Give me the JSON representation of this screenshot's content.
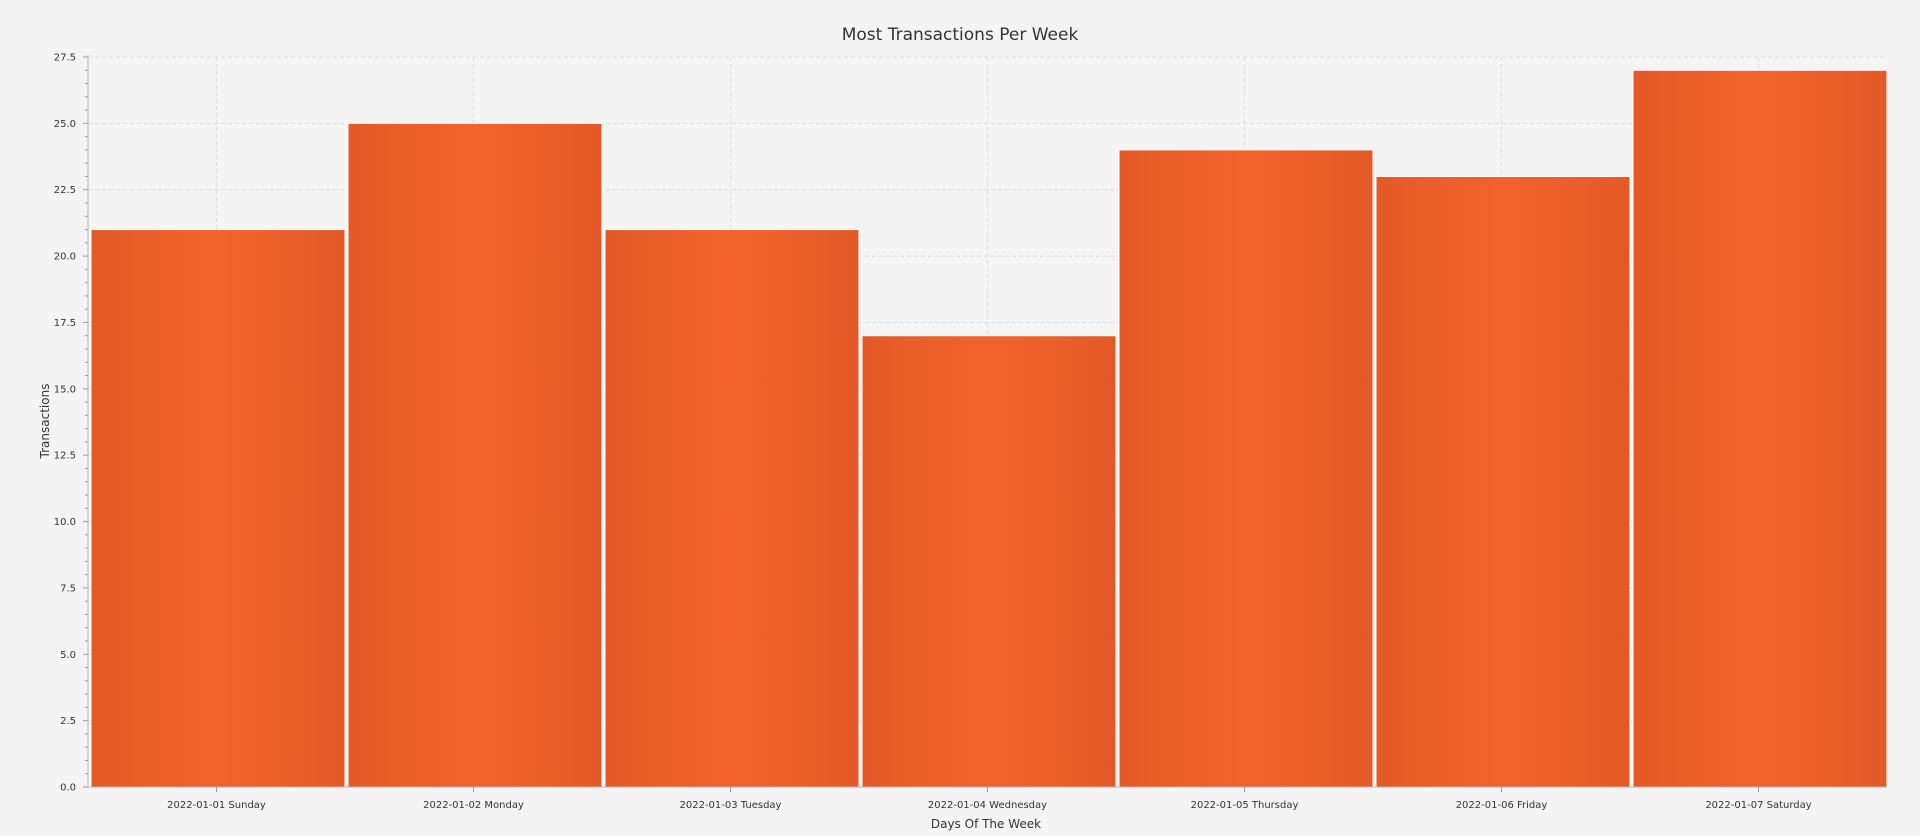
{
  "chart_data": {
    "type": "bar",
    "title": "Most Transactions Per Week",
    "xlabel": "Days Of The Week",
    "ylabel": "Transactions",
    "categories": [
      "2022-01-01 Sunday",
      "2022-01-02 Monday",
      "2022-01-03 Tuesday",
      "2022-01-04 Wednesday",
      "2022-01-05 Thursday",
      "2022-01-06 Friday",
      "2022-01-07 Saturday"
    ],
    "values": [
      21,
      25,
      21,
      17,
      24,
      23,
      27
    ],
    "ylim": [
      0,
      27.5
    ],
    "yticks": [
      "0.0",
      "2.5",
      "5.0",
      "7.5",
      "10.0",
      "12.5",
      "15.0",
      "17.5",
      "20.0",
      "22.5",
      "25.0",
      "27.5"
    ],
    "grid": true,
    "legend": "none",
    "colors": {
      "bar_edge": "#e35a27",
      "bar_center": "#f3622c",
      "background": "#f4f4f4"
    }
  }
}
